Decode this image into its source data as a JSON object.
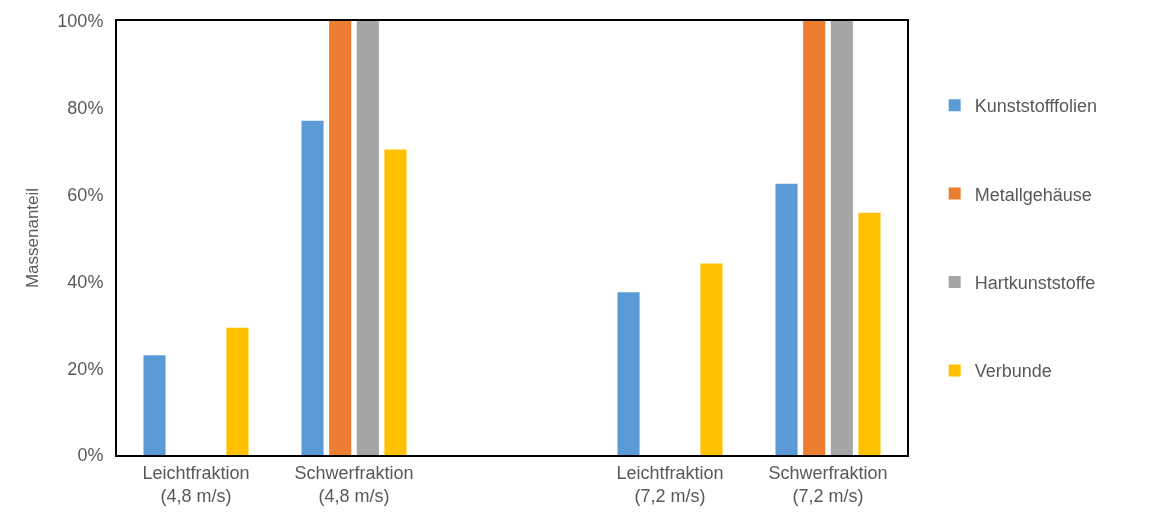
{
  "chart_data": {
    "type": "bar",
    "ylabel": "Massenanteil",
    "categories": [
      "Leichtfraktion (4,8 m/s)",
      "Schwerfraktion (4,8 m/s)",
      null,
      "Leichtfraktion (7,2 m/s)",
      "Schwerfraktion (7,2 m/s)"
    ],
    "series": [
      {
        "name": "Kunststofffolien",
        "color": "#5b9bd5",
        "values": [
          23,
          77,
          null,
          37.5,
          62.5
        ]
      },
      {
        "name": "Metallgehäuse",
        "color": "#ed7d31",
        "values": [
          0,
          100,
          null,
          0,
          100
        ]
      },
      {
        "name": "Hartkunststoffe",
        "color": "#a5a5a5",
        "values": [
          0,
          100,
          null,
          0,
          100
        ]
      },
      {
        "name": "Verbunde",
        "color": "#ffc000",
        "values": [
          29.3,
          70.4,
          null,
          44.1,
          55.8
        ]
      }
    ],
    "ylim": [
      0,
      100
    ],
    "yticks": [
      {
        "value": 0,
        "label": "0%"
      },
      {
        "value": 20,
        "label": "20%"
      },
      {
        "value": 40,
        "label": "40%"
      },
      {
        "value": 60,
        "label": "60%"
      },
      {
        "value": 80,
        "label": "80%"
      },
      {
        "value": 100,
        "label": "100%"
      }
    ],
    "grid": false,
    "legend": "right"
  }
}
